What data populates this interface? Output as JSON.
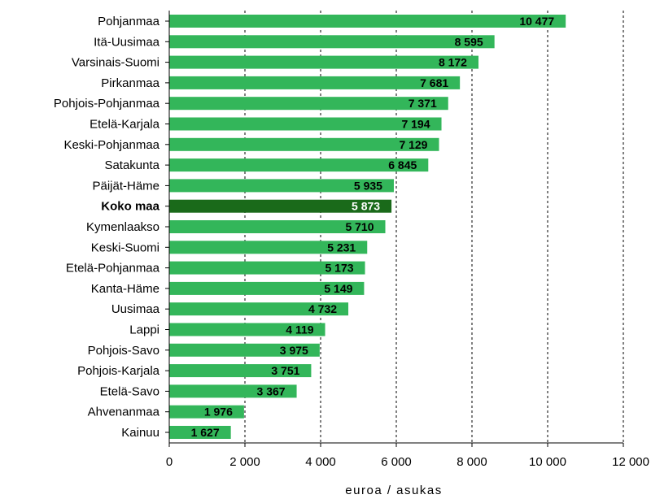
{
  "chart_data": {
    "type": "bar",
    "orientation": "horizontal",
    "categories": [
      "Pohjanmaa",
      "Itä-Uusimaa",
      "Varsinais-Suomi",
      "Pirkanmaa",
      "Pohjois-Pohjanmaa",
      "Etelä-Karjala",
      "Keski-Pohjanmaa",
      "Satakunta",
      "Päijät-Häme",
      "Koko maa",
      "Kymenlaakso",
      "Keski-Suomi",
      "Etelä-Pohjanmaa",
      "Kanta-Häme",
      "Uusimaa",
      "Lappi",
      "Pohjois-Savo",
      "Pohjois-Karjala",
      "Etelä-Savo",
      "Ahvenanmaa",
      "Kainuu"
    ],
    "values": [
      10477,
      8595,
      8172,
      7681,
      7371,
      7194,
      7129,
      6845,
      5935,
      5873,
      5710,
      5231,
      5173,
      5149,
      4732,
      4119,
      3975,
      3751,
      3367,
      1976,
      1627
    ],
    "value_labels": [
      "10 477",
      "8 595",
      "8 172",
      "7 681",
      "7 371",
      "7 194",
      "7 129",
      "6 845",
      "5 935",
      "5 873",
      "5 710",
      "5 231",
      "5 173",
      "5 149",
      "4 732",
      "4 119",
      "3 975",
      "3 751",
      "3 367",
      "1 976",
      "1 627"
    ],
    "highlight": "Koko maa",
    "xlim": [
      0,
      12000
    ],
    "xticks": [
      0,
      2000,
      4000,
      6000,
      8000,
      10000,
      12000
    ],
    "xtick_labels": [
      "0",
      "2 000",
      "4 000",
      "6 000",
      "8 000",
      "10 000",
      "12 000"
    ],
    "xlabel": "euroa / asukas",
    "grid": "vertical dashed",
    "colors": {
      "bar": "#33b65a",
      "highlight_bar": "#1a6a1a",
      "value_text": "#000000",
      "highlight_value_text": "#ffffff",
      "grid": "#000000"
    }
  }
}
